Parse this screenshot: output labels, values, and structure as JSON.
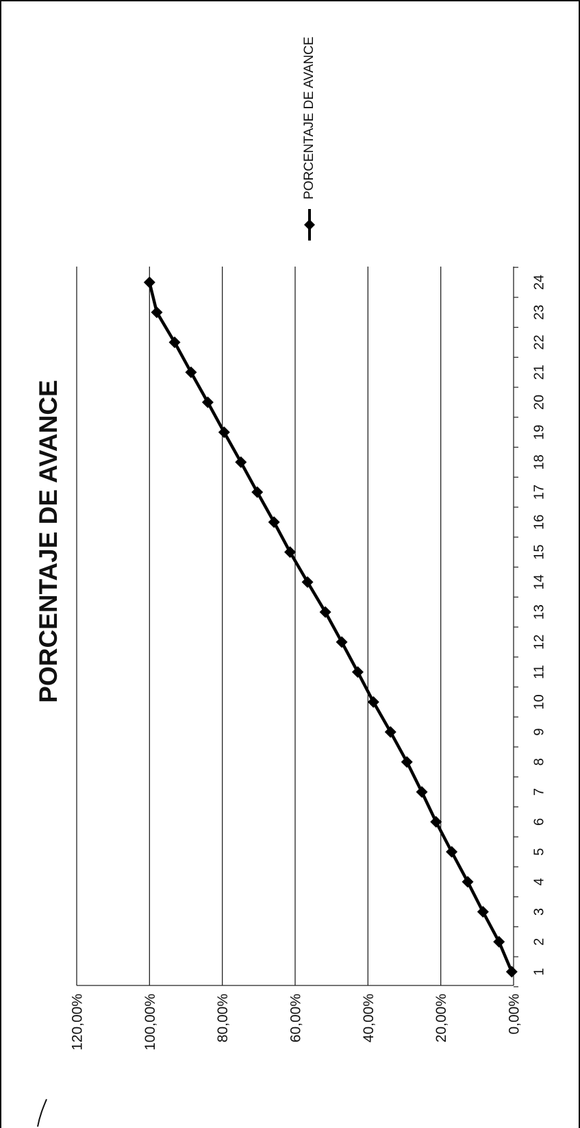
{
  "chart_data": {
    "type": "line",
    "orientation": "rotated-90-ccw",
    "title": "PORCENTAJE DE AVANCE",
    "xlabel": "",
    "ylabel": "",
    "x": [
      1,
      2,
      3,
      4,
      5,
      6,
      7,
      8,
      9,
      10,
      11,
      12,
      13,
      14,
      15,
      16,
      17,
      18,
      19,
      20,
      21,
      22,
      23,
      24
    ],
    "y_tick_labels": [
      "0,00%",
      "20,00%",
      "40,00%",
      "60,00%",
      "80,00%",
      "100,00%",
      "120,00%"
    ],
    "y_tick_values": [
      0,
      20,
      40,
      60,
      80,
      100,
      120
    ],
    "ylim": [
      0,
      120
    ],
    "grid": true,
    "legend_position": "right",
    "series": [
      {
        "name": "PORCENTAJE DE AVANCE",
        "marker": "diamond",
        "color": "#000000",
        "values": [
          0.5,
          4.0,
          8.4,
          12.6,
          17.0,
          21.3,
          25.2,
          29.3,
          33.8,
          38.5,
          42.8,
          47.2,
          51.7,
          56.6,
          61.4,
          65.8,
          70.4,
          74.9,
          79.5,
          84.0,
          88.6,
          93.1,
          98.0,
          100.0
        ]
      }
    ]
  }
}
